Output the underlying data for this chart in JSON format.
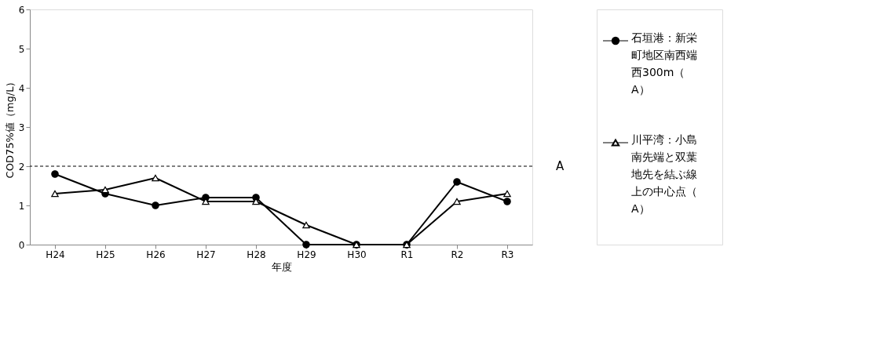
{
  "chart_data": {
    "type": "line",
    "xlabel": "年度",
    "ylabel": "COD75%値（mg/L）",
    "categories": [
      "H24",
      "H25",
      "H26",
      "H27",
      "H28",
      "H29",
      "H30",
      "R1",
      "R2",
      "R3"
    ],
    "series": [
      {
        "name": "石垣港：新栄町地区南西端西300m（A）",
        "color": "#000000",
        "marker": "circle",
        "values": [
          1.8,
          1.3,
          1.0,
          1.2,
          1.2,
          0,
          0,
          0,
          1.6,
          1.1
        ]
      },
      {
        "name": "川平湾：小島南先端と双葉地先を結ぶ線上の中心点（A）",
        "color": "#000000",
        "marker": "triangle",
        "values": [
          1.3,
          1.4,
          1.7,
          1.1,
          1.1,
          0.5,
          0,
          0,
          1.1,
          1.3
        ]
      }
    ],
    "ylim": [
      0,
      6
    ],
    "yticks": [
      0,
      1,
      2,
      3,
      4,
      5,
      6
    ],
    "grid": false,
    "legend": "right",
    "line_style": "solid",
    "ref_lines": [
      {
        "axis": "y",
        "value": 2,
        "label": "A",
        "color": "#000000",
        "line_style": "dashed"
      }
    ]
  }
}
